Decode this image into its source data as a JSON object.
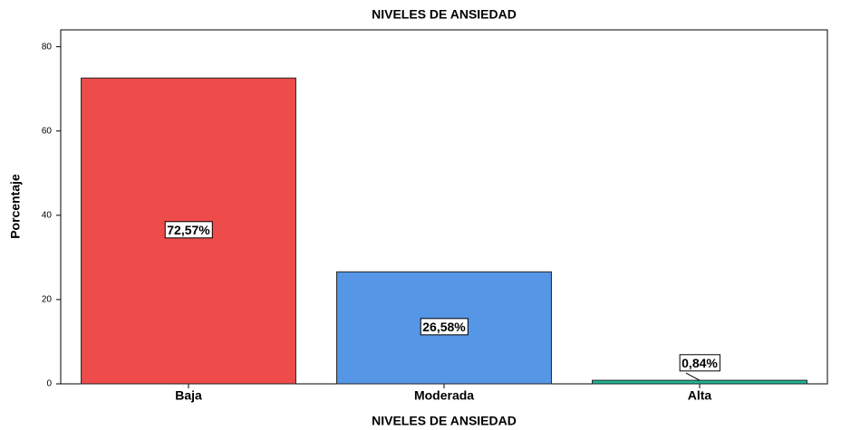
{
  "chart_data": {
    "type": "bar",
    "title": "NIVELES DE ANSIEDAD",
    "x_label": "NIVELES DE ANSIEDAD",
    "y_label": "Porcentaje",
    "categories": [
      "Baja",
      "Moderada",
      "Alta"
    ],
    "values": [
      72.57,
      26.58,
      0.84
    ],
    "value_labels": [
      "72,57%",
      "26,58%",
      "0,84%"
    ],
    "colors": [
      "#ee4b4b",
      "#5596e6",
      "#1eb894"
    ],
    "ylim": [
      0,
      84
    ],
    "yticks": [
      0,
      20,
      40,
      60,
      80
    ],
    "grid": false
  }
}
